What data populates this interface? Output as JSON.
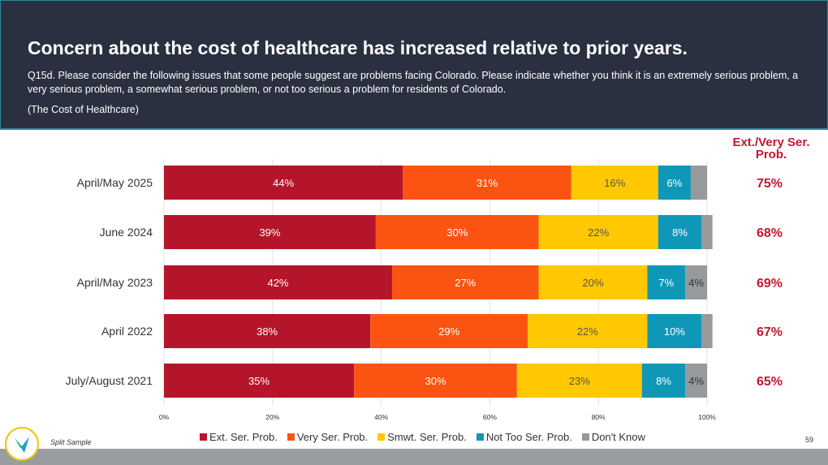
{
  "header": {
    "title": "Concern about the cost of healthcare has increased relative to prior years.",
    "question": "Q15d. Please consider the following issues that some people suggest are problems facing Colorado. Please indicate whether you think it is an extremely serious problem, a very serious problem, a somewhat serious problem, or not too serious a problem for residents of Colorado.",
    "subquestion": "(The Cost of Healthcare)"
  },
  "summary_header": "Ext./Very Ser. Prob.",
  "footer": {
    "note": "Split Sample",
    "page": "59"
  },
  "chart_data": {
    "type": "bar",
    "orientation": "horizontal",
    "stacked": true,
    "categories": [
      "April/May 2025",
      "June 2024",
      "April/May 2023",
      "April 2022",
      "July/August 2021"
    ],
    "series": [
      {
        "name": "Ext. Ser. Prob.",
        "color": "#b5152b",
        "values": [
          44,
          39,
          42,
          38,
          35
        ],
        "labels": [
          "44%",
          "39%",
          "42%",
          "38%",
          "35%"
        ]
      },
      {
        "name": "Very Ser. Prob.",
        "color": "#fb5412",
        "values": [
          31,
          30,
          27,
          29,
          30
        ],
        "labels": [
          "31%",
          "30%",
          "27%",
          "29%",
          "30%"
        ]
      },
      {
        "name": "Smwt. Ser. Prob.",
        "color": "#ffc800",
        "values": [
          16,
          22,
          20,
          22,
          23
        ],
        "labels": [
          "16%",
          "22%",
          "20%",
          "22%",
          "23%"
        ]
      },
      {
        "name": "Not Too Ser. Prob.",
        "color": "#0f97b8",
        "values": [
          6,
          8,
          7,
          10,
          8
        ],
        "labels": [
          "6%",
          "8%",
          "7%",
          "10%",
          "8%"
        ]
      },
      {
        "name": "Don't Know",
        "color": "#969a9d",
        "values": [
          3,
          2,
          4,
          2,
          4
        ],
        "labels": [
          "",
          "",
          "4%",
          "",
          "4%"
        ]
      }
    ],
    "summary": [
      "75%",
      "68%",
      "69%",
      "67%",
      "65%"
    ],
    "xlim": [
      0,
      100
    ],
    "xticks": [
      "0%",
      "20%",
      "40%",
      "60%",
      "80%",
      "100%"
    ],
    "grid": true,
    "legend": "bottom"
  }
}
